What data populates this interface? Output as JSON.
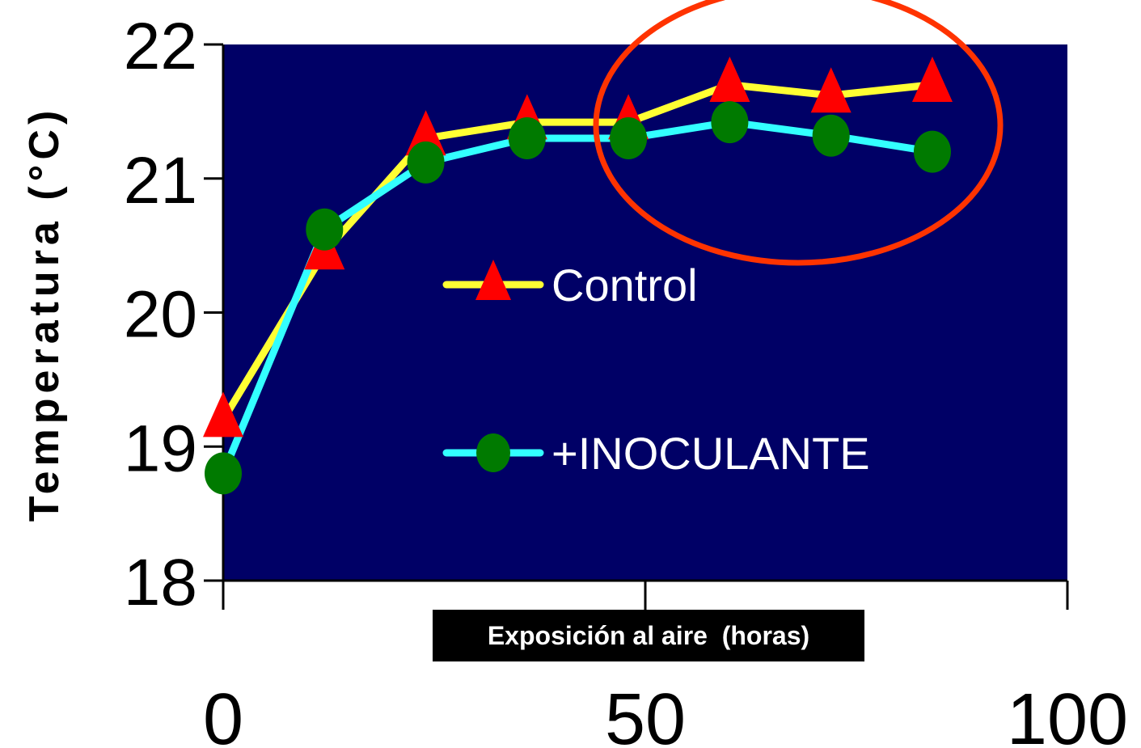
{
  "chart_data": {
    "type": "line",
    "xlabel": "Exposición al aire  (horas)",
    "ylabel": "Temperatura (°C)",
    "xlim": [
      0,
      100
    ],
    "ylim": [
      18,
      22
    ],
    "xticks": [
      "0",
      "50",
      "100"
    ],
    "yticks": [
      "18",
      "19",
      "20",
      "21",
      "22"
    ],
    "x": [
      0,
      12,
      24,
      36,
      48,
      60,
      72,
      84
    ],
    "series": [
      {
        "name": "Control",
        "values": [
          19.2,
          20.45,
          21.3,
          21.42,
          21.42,
          21.7,
          21.62,
          21.7
        ],
        "line_color": "#ffff33",
        "marker": "triangle",
        "marker_color": "#ff0000"
      },
      {
        "name": "+INOCULANTE",
        "values": [
          18.8,
          20.62,
          21.12,
          21.3,
          21.3,
          21.42,
          21.32,
          21.2
        ],
        "line_color": "#33ffff",
        "marker": "circle",
        "marker_color": "#007a00"
      }
    ],
    "plot_background": "#000066",
    "highlight_color": "#ff3300",
    "grid": false,
    "legend_position": "center"
  }
}
